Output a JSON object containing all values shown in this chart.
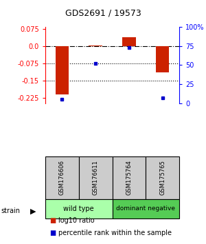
{
  "title": "GDS2691 / 19573",
  "samples": [
    "GSM176606",
    "GSM176611",
    "GSM175764",
    "GSM175765"
  ],
  "log10_ratio": [
    -0.21,
    0.002,
    0.04,
    -0.115
  ],
  "percentile_rank": [
    5,
    52,
    73,
    7
  ],
  "groups": [
    {
      "label": "wild type",
      "color": "#aaffaa",
      "span": [
        0,
        1
      ]
    },
    {
      "label": "dominant negative",
      "color": "#55cc55",
      "span": [
        2,
        3
      ]
    }
  ],
  "ylim_left": [
    -0.25,
    0.085
  ],
  "ylim_right": [
    0,
    100
  ],
  "left_ticks": [
    0.075,
    0.0,
    -0.075,
    -0.15,
    -0.225
  ],
  "right_ticks": [
    100,
    75,
    50,
    25,
    0
  ],
  "bar_color": "#cc2200",
  "dot_color": "#0000cc",
  "bar_width": 0.4,
  "legend_red_label": "log10 ratio",
  "legend_blue_label": "percentile rank within the sample",
  "strain_label": "strain",
  "sample_box_color": "#cccccc",
  "title_fontsize": 9,
  "tick_fontsize": 7,
  "label_fontsize": 7
}
